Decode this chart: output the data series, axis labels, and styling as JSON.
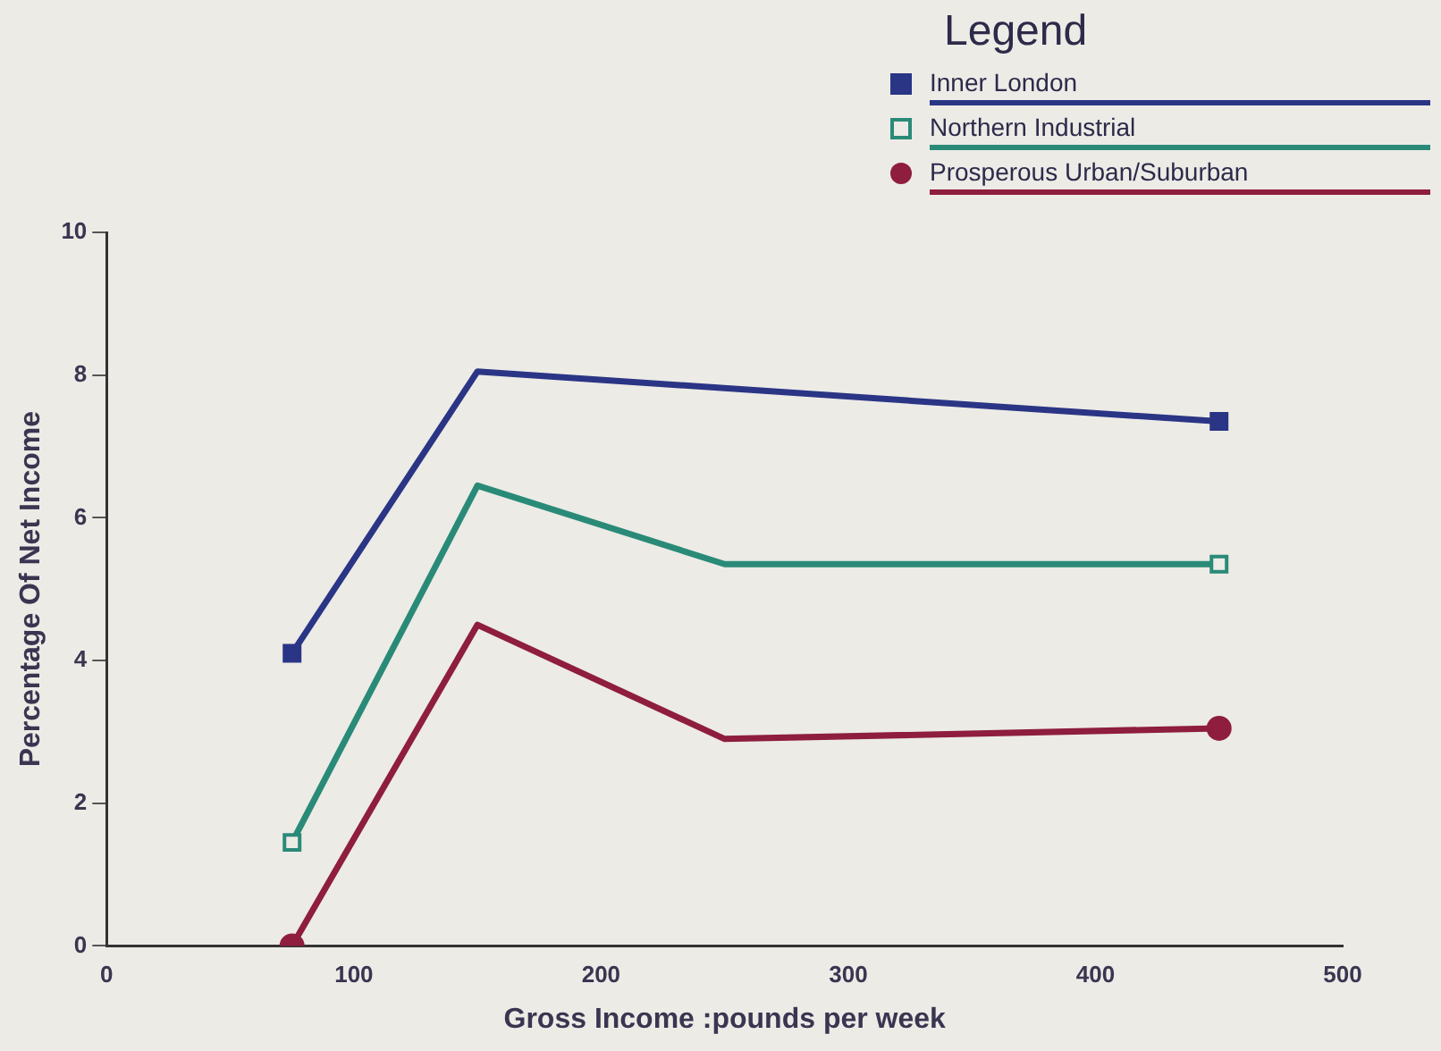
{
  "chart_data": {
    "type": "line",
    "xlabel": "Gross Income :pounds per week",
    "ylabel": "Percentage Of Net Income",
    "legend_title": "Legend",
    "legend": "top right",
    "grid": false,
    "xlim": [
      0,
      500
    ],
    "xticks": [
      0,
      100,
      200,
      300,
      400,
      500
    ],
    "ylim": [
      0,
      10
    ],
    "yticks": [
      0,
      2,
      4,
      6,
      8,
      10
    ],
    "series": [
      {
        "name": "Inner London",
        "color": "#2b3585",
        "marker": "square",
        "x": [
          75,
          150,
          450
        ],
        "values": [
          4.1,
          8.05,
          7.35
        ]
      },
      {
        "name": "Northern Industrial",
        "color": "#2a8a78",
        "marker": "square",
        "x": [
          75,
          150,
          250,
          450
        ],
        "values": [
          1.45,
          6.45,
          5.35,
          5.35
        ]
      },
      {
        "name": "Prosperous Urban/Suburban",
        "color": "#8e1d3e",
        "marker": "circle",
        "x": [
          75,
          150,
          250,
          450
        ],
        "values": [
          0,
          4.5,
          2.9,
          3.05
        ]
      }
    ]
  }
}
